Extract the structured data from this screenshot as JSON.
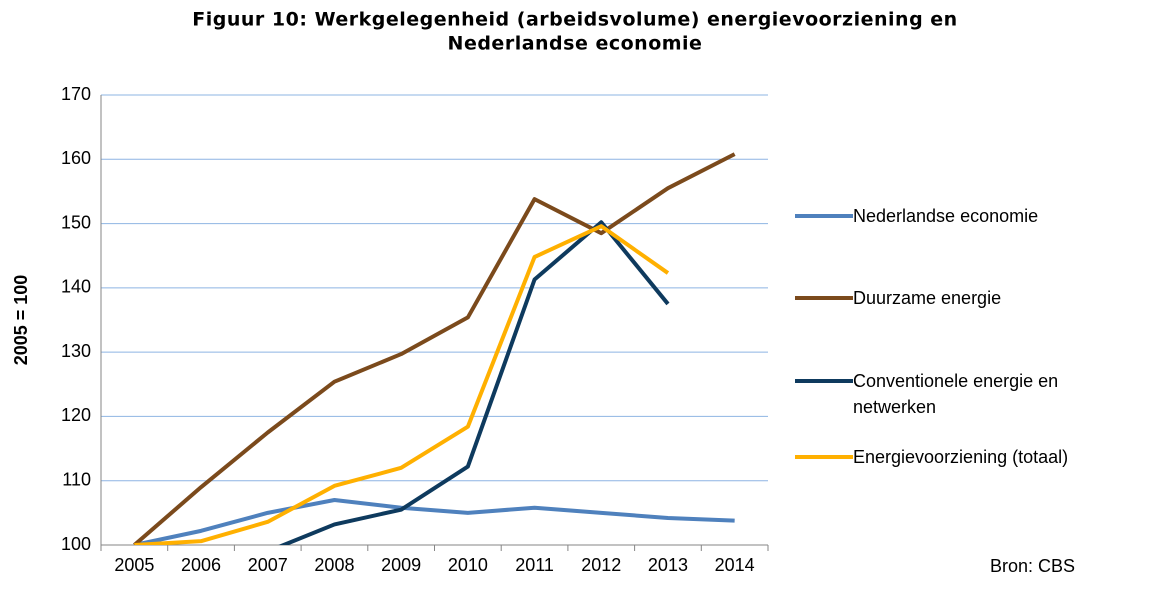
{
  "chart_data": {
    "type": "line",
    "title": [
      "Figuur 10: Werkgelegenheid (arbeidsvolume) energievoorziening en",
      "Nederlandse economie"
    ],
    "y_label": "2005 = 100",
    "annotation": "Bron: CBS",
    "categories": [
      "2005",
      "2006",
      "2007",
      "2008",
      "2009",
      "2010",
      "2011",
      "2012",
      "2013",
      "2014"
    ],
    "series": [
      {
        "name": "Nederlandse economie",
        "color": "#4f81bd",
        "values": [
          100,
          102.2,
          105,
          107,
          105.8,
          105,
          105.8,
          105,
          104.2,
          103.8
        ]
      },
      {
        "name": "Duurzame energie",
        "color": "#7b4a1c",
        "values": [
          100,
          109,
          117.5,
          125.4,
          129.7,
          135.4,
          153.8,
          148.5,
          155.5,
          160.8
        ]
      },
      {
        "name": "Conventionele energie en netwerken",
        "color": "#0e3a5e",
        "values": [
          100,
          97,
          99,
          103.2,
          105.5,
          112.2,
          141.3,
          150.2,
          137.5,
          null
        ]
      },
      {
        "name": "Energievoorziening (totaal)",
        "color": "#ffb000",
        "values": [
          100,
          100.6,
          103.6,
          109.2,
          112,
          118.4,
          144.8,
          149.6,
          142.3,
          null
        ]
      }
    ],
    "ylim": [
      100,
      170
    ],
    "yticks": [
      100,
      110,
      120,
      130,
      140,
      150,
      160,
      170
    ],
    "grid": true
  }
}
